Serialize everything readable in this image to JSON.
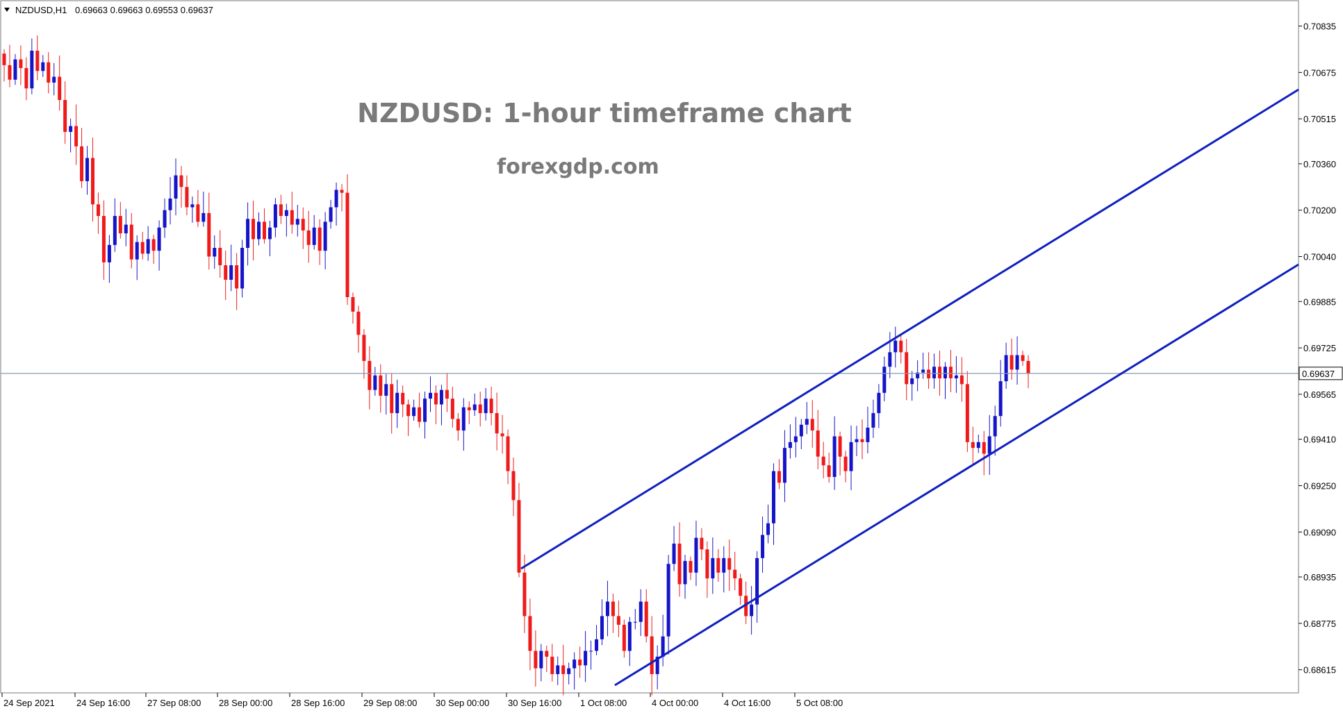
{
  "header": {
    "symbol": "NZDUSD,H1",
    "ohlc": "0.69663 0.69663 0.69553 0.69637"
  },
  "chart_data": {
    "type": "candlestick",
    "title": "NZDUSD: 1-hour timeframe chart",
    "subtitle": "forexgdp.com",
    "current_price_label": "0.69637",
    "current_price": 0.69637,
    "ylim": [
      0.6854,
      0.7092
    ],
    "y_ticks": [
      "0.70835",
      "0.70675",
      "0.70515",
      "0.70360",
      "0.70200",
      "0.70040",
      "0.69885",
      "0.69725",
      "0.69565",
      "0.69410",
      "0.69250",
      "0.69090",
      "0.68935",
      "0.68775",
      "0.68615"
    ],
    "x_tick_labels": [
      "24 Sep 2021",
      "24 Sep 16:00",
      "27 Sep 08:00",
      "28 Sep 00:00",
      "28 Sep 16:00",
      "29 Sep 08:00",
      "30 Sep 00:00",
      "30 Sep 16:00",
      "1 Oct 08:00",
      "4 Oct 00:00",
      "4 Oct 16:00",
      "5 Oct 08:00"
    ],
    "candles_close": [
      0.707,
      0.7065,
      0.7072,
      0.7069,
      0.7062,
      0.7075,
      0.7068,
      0.7071,
      0.7064,
      0.7066,
      0.7058,
      0.7047,
      0.7049,
      0.7042,
      0.703,
      0.7038,
      0.7022,
      0.7018,
      0.7002,
      0.7008,
      0.7018,
      0.7012,
      0.7015,
      0.7003,
      0.7009,
      0.7005,
      0.701,
      0.7006,
      0.7014,
      0.702,
      0.7024,
      0.7032,
      0.7028,
      0.7021,
      0.7022,
      0.7016,
      0.7019,
      0.7004,
      0.7007,
      0.7001,
      0.6996,
      0.7001,
      0.6993,
      0.7007,
      0.7017,
      0.701,
      0.7016,
      0.701,
      0.7014,
      0.7022,
      0.7018,
      0.702,
      0.7015,
      0.7017,
      0.7013,
      0.7008,
      0.7014,
      0.7006,
      0.7016,
      0.7021,
      0.7027,
      0.7026,
      0.699,
      0.6985,
      0.6977,
      0.6968,
      0.6958,
      0.6963,
      0.6956,
      0.696,
      0.695,
      0.6957,
      0.6953,
      0.6949,
      0.6952,
      0.6947,
      0.6955,
      0.6957,
      0.6953,
      0.6958,
      0.6955,
      0.6948,
      0.6944,
      0.6952,
      0.6951,
      0.6953,
      0.695,
      0.6955,
      0.695,
      0.6943,
      0.6942,
      0.693,
      0.692,
      0.6895,
      0.688,
      0.6868,
      0.6862,
      0.6868,
      0.6866,
      0.686,
      0.6863,
      0.686,
      0.6862,
      0.6865,
      0.6863,
      0.6868,
      0.6868,
      0.6872,
      0.688,
      0.6885,
      0.688,
      0.6877,
      0.6868,
      0.6878,
      0.6878,
      0.6885,
      0.6873,
      0.686,
      0.6866,
      0.6873,
      0.6898,
      0.6905,
      0.6891,
      0.6899,
      0.6895,
      0.6907,
      0.6903,
      0.6893,
      0.69,
      0.6895,
      0.69,
      0.6896,
      0.6893,
      0.6887,
      0.688,
      0.6884,
      0.69,
      0.6908,
      0.6912,
      0.693,
      0.6926,
      0.6938,
      0.694,
      0.6942,
      0.6946,
      0.6948,
      0.6944,
      0.6935,
      0.6932,
      0.6928,
      0.6942,
      0.6935,
      0.693,
      0.694,
      0.6941,
      0.694,
      0.6945,
      0.695,
      0.6957,
      0.6966,
      0.6971,
      0.6975,
      0.6971,
      0.696,
      0.6962,
      0.6964,
      0.6965,
      0.6962,
      0.6966,
      0.6962,
      0.6966,
      0.6962,
      0.6963,
      0.696,
      0.694,
      0.6938,
      0.694,
      0.6936,
      0.6942,
      0.6949,
      0.6961,
      0.697,
      0.6965,
      0.697,
      0.6968,
      0.69637
    ]
  }
}
